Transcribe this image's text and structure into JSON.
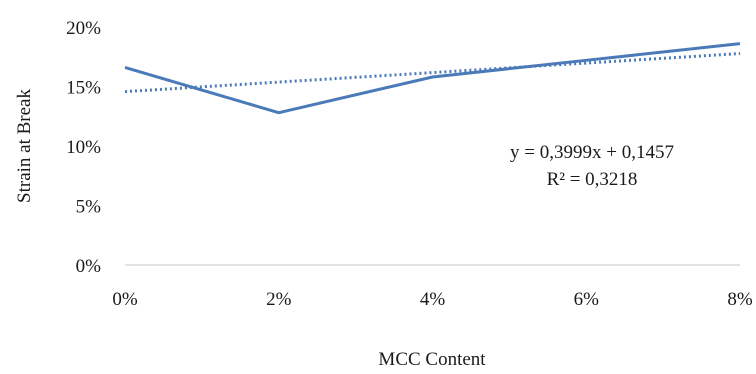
{
  "chart_data": {
    "type": "line",
    "x": [
      0,
      0.02,
      0.04,
      0.06,
      0.08
    ],
    "x_tick_labels": [
      "0%",
      "2%",
      "4%",
      "6%",
      "8%"
    ],
    "xlim": [
      0,
      0.08
    ],
    "y_tick_labels": [
      "0%",
      "5%",
      "10%",
      "15%",
      "20%"
    ],
    "y_ticks": [
      0,
      0.05,
      0.1,
      0.15,
      0.2
    ],
    "ylim": [
      0,
      0.2
    ],
    "xlabel": "MCC Content",
    "ylabel": "Strain at Break",
    "grid": false,
    "legend": "none",
    "series": [
      {
        "values": [
          0.166,
          0.128,
          0.158,
          0.172,
          0.186
        ],
        "color": "#4a7ab8",
        "style": "solid"
      }
    ],
    "trendline": {
      "type": "linear",
      "slope": 0.3999,
      "intercept": 0.1457,
      "color": "#4a7ab8",
      "style": "dotted"
    },
    "annotation": {
      "equation": "y = 0,3999x + 0,1457",
      "r_squared": "R² = 0,3218"
    }
  }
}
